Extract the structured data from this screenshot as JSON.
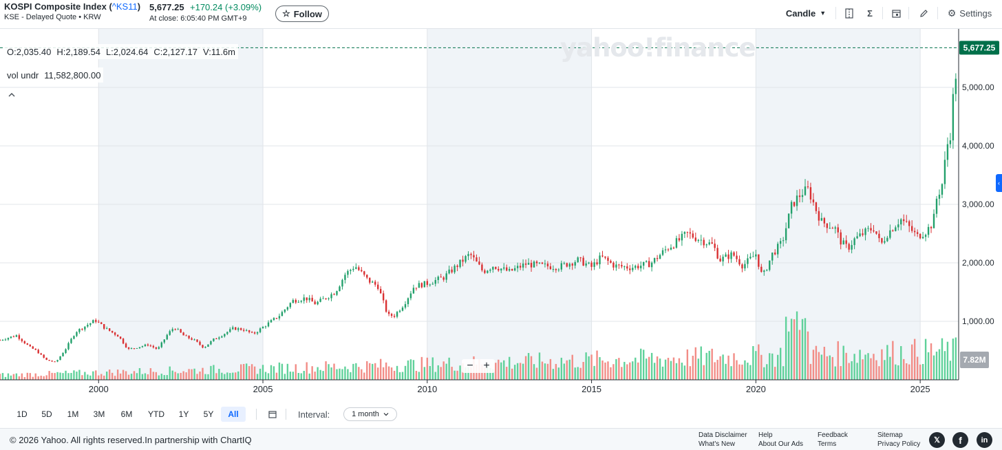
{
  "header": {
    "name": "KOSPI Composite Index",
    "symbol_open": "(",
    "symbol": "^KS11",
    "symbol_close": ")",
    "subtitle": "KSE - Delayed Quote • KRW",
    "price": "5,677.25",
    "change": "+170.24",
    "change_pct": "(+3.09%)",
    "at_close": "At close: 6:05:40 PM GMT+9",
    "follow_label": "Follow",
    "follow_icon": "star-outline-icon",
    "chart_type_label": "Candle",
    "settings_label": "Settings",
    "toolbar_icons": [
      "compare-icon",
      "indicators-sigma-icon",
      "events-calendar-icon",
      "draw-pencil-icon",
      "gear-icon"
    ]
  },
  "overlay": {
    "ohlc": [
      {
        "label": "O:",
        "value": "2,035.40"
      },
      {
        "label": "H:",
        "value": "2,189.54"
      },
      {
        "label": "L:",
        "value": "2,024.64"
      },
      {
        "label": "C:",
        "value": "2,127.17"
      },
      {
        "label": "V:",
        "value": "11.6m"
      }
    ],
    "volume_label": "vol undr",
    "volume_value": "11,582,800.00",
    "watermark": "yahoo!finance",
    "zoom_out": "−",
    "zoom_in": "+"
  },
  "colors": {
    "up": "#22a06b",
    "down": "#d92f31",
    "vol_up": "#5fd19a",
    "vol_down": "#f28c86",
    "band": "#f0f4f8",
    "grid": "#e0e4e9",
    "price_tag": "#00704a",
    "accent": "#0f69ff"
  },
  "chart_data": {
    "type": "candlestick",
    "interval": "1 month",
    "x_range": [
      1997,
      2026.17
    ],
    "ylim": [
      0,
      6000
    ],
    "y_ticks": [
      "1,000.00",
      "2,000.00",
      "3,000.00",
      "4,000.00",
      "5,000.00"
    ],
    "x_ticks": [
      "2000",
      "2005",
      "2010",
      "2015",
      "2020",
      "2025"
    ],
    "last_price_label": "5,677.25",
    "last_volume_label": "7.82M",
    "grid": true,
    "anchors": [
      [
        1997.0,
        680
      ],
      [
        1997.5,
        760
      ],
      [
        1997.9,
        560
      ],
      [
        1998.1,
        500
      ],
      [
        1998.4,
        340
      ],
      [
        1998.7,
        300
      ],
      [
        1999.0,
        530
      ],
      [
        1999.3,
        820
      ],
      [
        1999.6,
        920
      ],
      [
        1999.9,
        1020
      ],
      [
        2000.2,
        880
      ],
      [
        2000.6,
        750
      ],
      [
        2000.9,
        520
      ],
      [
        2001.2,
        560
      ],
      [
        2001.5,
        600
      ],
      [
        2001.8,
        520
      ],
      [
        2002.1,
        780
      ],
      [
        2002.3,
        900
      ],
      [
        2002.6,
        750
      ],
      [
        2002.9,
        680
      ],
      [
        2003.2,
        550
      ],
      [
        2003.5,
        690
      ],
      [
        2003.8,
        780
      ],
      [
        2004.1,
        880
      ],
      [
        2004.4,
        860
      ],
      [
        2004.7,
        780
      ],
      [
        2005.0,
        900
      ],
      [
        2005.5,
        1100
      ],
      [
        2005.9,
        1350
      ],
      [
        2006.3,
        1400
      ],
      [
        2006.6,
        1300
      ],
      [
        2006.9,
        1400
      ],
      [
        2007.2,
        1500
      ],
      [
        2007.5,
        1800
      ],
      [
        2007.8,
        1950
      ],
      [
        2008.2,
        1700
      ],
      [
        2008.5,
        1600
      ],
      [
        2008.8,
        1100
      ],
      [
        2009.0,
        1100
      ],
      [
        2009.3,
        1300
      ],
      [
        2009.6,
        1600
      ],
      [
        2010.0,
        1650
      ],
      [
        2010.5,
        1750
      ],
      [
        2010.9,
        1950
      ],
      [
        2011.3,
        2150
      ],
      [
        2011.7,
        1850
      ],
      [
        2012.0,
        1950
      ],
      [
        2012.5,
        1850
      ],
      [
        2013.0,
        1980
      ],
      [
        2013.5,
        1950
      ],
      [
        2014.0,
        1930
      ],
      [
        2014.6,
        2050
      ],
      [
        2015.0,
        1930
      ],
      [
        2015.3,
        2100
      ],
      [
        2015.7,
        1950
      ],
      [
        2016.2,
        1920
      ],
      [
        2016.8,
        1990
      ],
      [
        2017.3,
        2250
      ],
      [
        2017.7,
        2400
      ],
      [
        2017.9,
        2500
      ],
      [
        2018.3,
        2400
      ],
      [
        2018.7,
        2300
      ],
      [
        2018.9,
        2050
      ],
      [
        2019.3,
        2150
      ],
      [
        2019.6,
        1950
      ],
      [
        2020.0,
        2150
      ],
      [
        2020.2,
        1750
      ],
      [
        2020.5,
        2150
      ],
      [
        2020.8,
        2350
      ],
      [
        2021.1,
        3000
      ],
      [
        2021.4,
        3200
      ],
      [
        2021.6,
        3250
      ],
      [
        2021.8,
        2950
      ],
      [
        2022.0,
        2700
      ],
      [
        2022.4,
        2600
      ],
      [
        2022.6,
        2350
      ],
      [
        2022.8,
        2250
      ],
      [
        2023.0,
        2400
      ],
      [
        2023.4,
        2550
      ],
      [
        2023.6,
        2600
      ],
      [
        2023.8,
        2300
      ],
      [
        2024.0,
        2500
      ],
      [
        2024.4,
        2750
      ],
      [
        2024.6,
        2650
      ],
      [
        2024.9,
        2450
      ],
      [
        2025.2,
        2550
      ],
      [
        2025.4,
        2700
      ],
      [
        2025.5,
        3100
      ],
      [
        2025.7,
        3400
      ],
      [
        2025.8,
        4000
      ],
      [
        2025.9,
        4100
      ],
      [
        2026.0,
        4800
      ],
      [
        2026.08,
        5200
      ],
      [
        2026.14,
        5677
      ]
    ],
    "volume_scale_millions": [
      0,
      32
    ]
  },
  "ranges": {
    "buttons": [
      "1D",
      "5D",
      "1M",
      "3M",
      "6M",
      "YTD",
      "1Y",
      "5Y",
      "All"
    ],
    "active": "All",
    "calendar_icon": "calendar-icon",
    "interval_label": "Interval:",
    "interval_value": "1 month"
  },
  "footer": {
    "copyright": "© 2026 Yahoo. All rights reserved.In partnership with ChartIQ",
    "links": [
      [
        "Data Disclaimer",
        "What's New"
      ],
      [
        "Help",
        "About Our Ads"
      ],
      [
        "Feedback",
        "Terms"
      ],
      [
        "Sitemap",
        "Privacy Policy"
      ]
    ],
    "social": [
      {
        "name": "x-icon",
        "glyph": "𝕏"
      },
      {
        "name": "facebook-icon",
        "glyph": "f"
      },
      {
        "name": "linkedin-icon",
        "glyph": "in"
      }
    ]
  }
}
